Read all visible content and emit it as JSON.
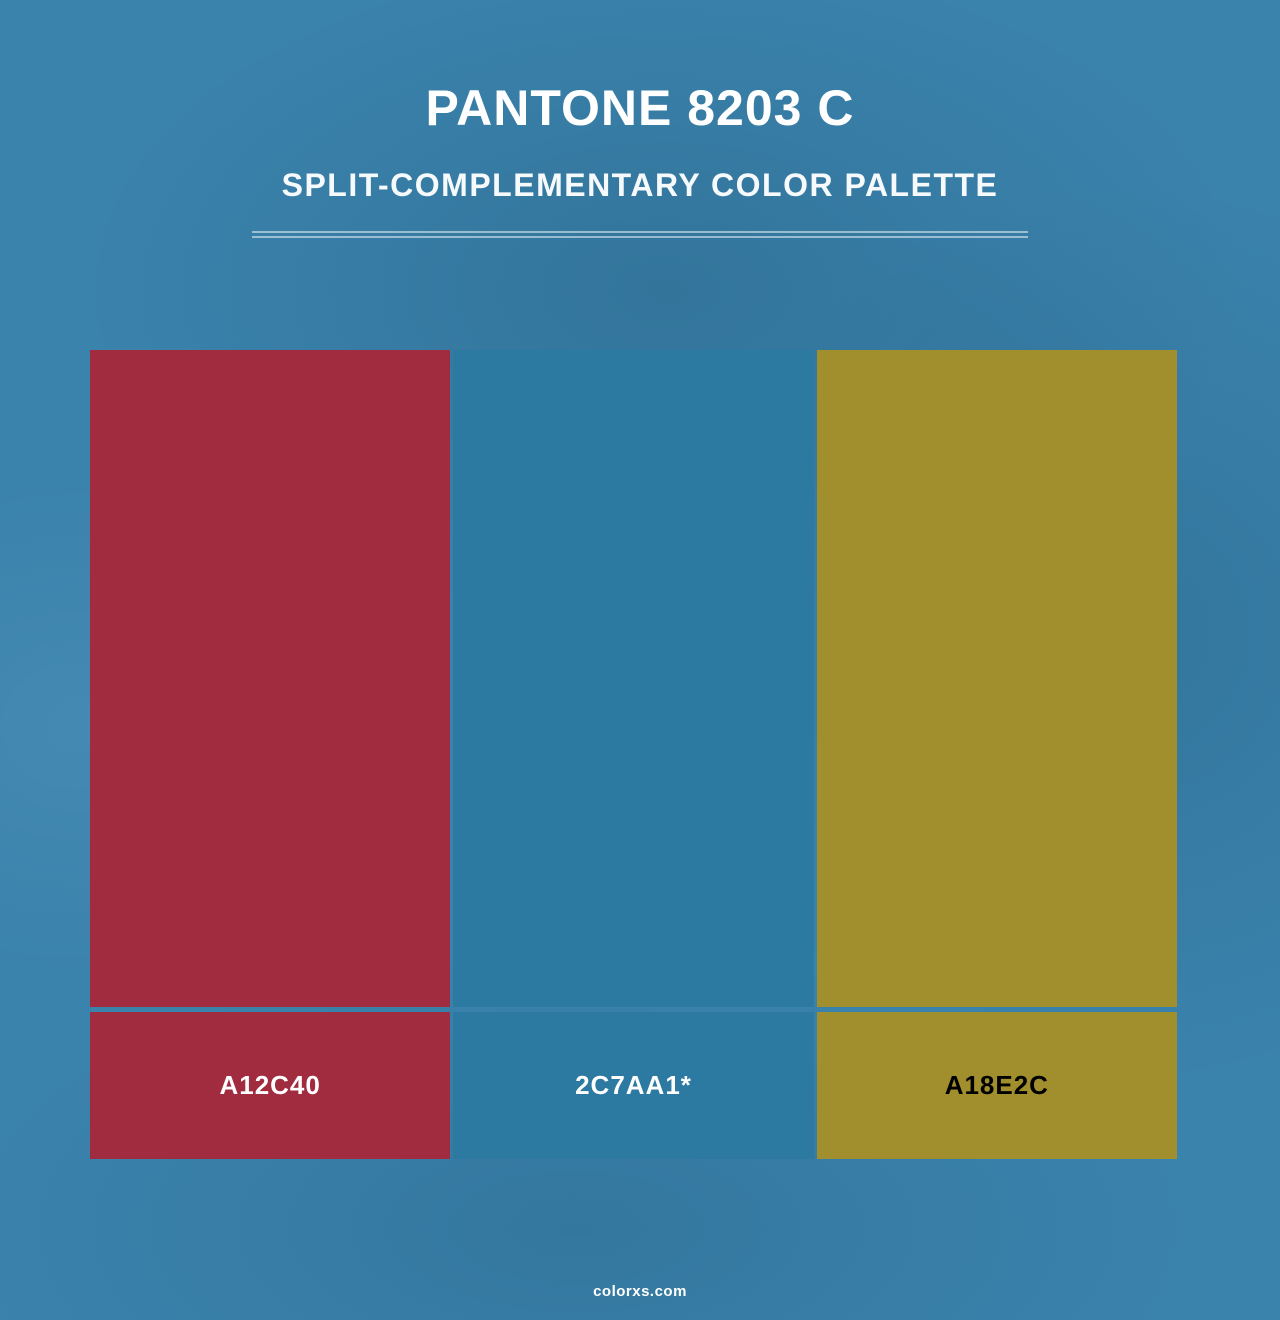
{
  "header": {
    "title": "PANTONE 8203 C",
    "subtitle": "SPLIT-COMPLEMENTARY COLOR PALETTE"
  },
  "palette": {
    "swatches": [
      {
        "hex_label": "A12C40",
        "color": "#A12C40",
        "label_text_color": "#FFFFFF"
      },
      {
        "hex_label": "2C7AA1*",
        "color": "#2C7AA1",
        "label_text_color": "#FFFFFF"
      },
      {
        "hex_label": "A18E2C",
        "color": "#A18E2C",
        "label_text_color": "#000000"
      }
    ]
  },
  "footer": {
    "watermark": "colorxs.com"
  },
  "theme": {
    "background_base": "#3A83AD",
    "background_shade": "#2F7394",
    "divider_color": "rgba(255,255,255,0.5)",
    "title_color": "#FFFFFF"
  }
}
